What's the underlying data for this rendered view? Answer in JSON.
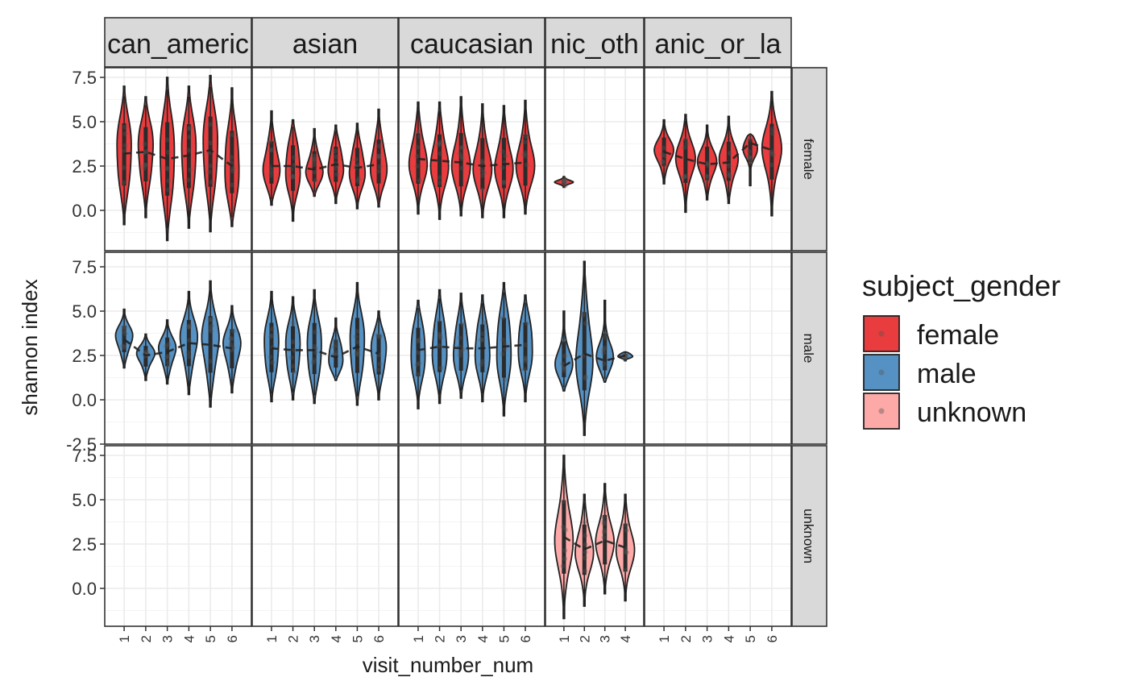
{
  "chart_data": {
    "type": "violin",
    "title": "",
    "xlabel": "visit_number_num",
    "ylabel": "shannon index",
    "ylim": [
      -2.5,
      7.8
    ],
    "y_ticks": [
      "-2.5",
      "0.0",
      "2.5",
      "5.0",
      "7.5"
    ],
    "col_facets": [
      "african_american",
      "asian",
      "caucasian",
      "ethnic_other",
      "hispanic_or_latino"
    ],
    "col_facet_labels": [
      "can_americ",
      "asian",
      "caucasian",
      "nic_oth",
      "anic_or_la"
    ],
    "row_facets": [
      "female",
      "male",
      "unknown"
    ],
    "col_visits": [
      [
        "1",
        "2",
        "3",
        "4",
        "5",
        "6"
      ],
      [
        "1",
        "2",
        "3",
        "4",
        "5",
        "6"
      ],
      [
        "1",
        "2",
        "3",
        "4",
        "5",
        "6"
      ],
      [
        "1",
        "2",
        "3",
        "4"
      ],
      [
        "1",
        "2",
        "3",
        "4",
        "5",
        "6"
      ]
    ],
    "legend": {
      "title": "subject_gender",
      "position": "right",
      "entries": [
        "female",
        "male",
        "unknown"
      ]
    },
    "colors": {
      "female": "#e41a1c",
      "male": "#377eb8",
      "unknown": "#fb9a99",
      "strip_bg": "#d9d9d9",
      "panel_border": "#333333",
      "grid": "#ebebeb"
    },
    "series": [
      {
        "row": "female",
        "col": "african_american",
        "visits": [
          1,
          2,
          3,
          4,
          5,
          6
        ],
        "min": [
          -0.8,
          -0.4,
          -1.7,
          -1.0,
          -1.2,
          -0.9
        ],
        "max": [
          7.0,
          6.4,
          7.5,
          7.0,
          7.6,
          6.9
        ],
        "median": [
          3.2,
          3.3,
          2.9,
          3.1,
          3.4,
          2.5
        ]
      },
      {
        "row": "female",
        "col": "asian",
        "visits": [
          1,
          2,
          3,
          4,
          5,
          6
        ],
        "min": [
          0.3,
          -0.6,
          0.8,
          0.4,
          0.1,
          0.2
        ],
        "max": [
          5.6,
          5.1,
          4.6,
          4.8,
          4.9,
          5.7
        ],
        "median": [
          2.5,
          2.5,
          2.3,
          2.6,
          2.4,
          2.6
        ]
      },
      {
        "row": "female",
        "col": "caucasian",
        "visits": [
          1,
          2,
          3,
          4,
          5,
          6
        ],
        "min": [
          -0.2,
          -0.5,
          -0.3,
          -0.4,
          -0.4,
          -0.2
        ],
        "max": [
          6.1,
          6.1,
          6.4,
          6.0,
          5.9,
          6.2
        ],
        "median": [
          2.9,
          2.8,
          2.7,
          2.5,
          2.6,
          2.7
        ]
      },
      {
        "row": "female",
        "col": "ethnic_other",
        "visits": [
          1
        ],
        "min": [
          1.3
        ],
        "max": [
          1.9
        ],
        "median": [
          1.6
        ]
      },
      {
        "row": "female",
        "col": "hispanic_or_latino",
        "visits": [
          1,
          2,
          3,
          4,
          5,
          6
        ],
        "min": [
          1.5,
          -0.1,
          0.6,
          0.4,
          1.4,
          -0.3
        ],
        "max": [
          5.1,
          5.4,
          4.8,
          5.3,
          4.3,
          6.7
        ],
        "median": [
          3.3,
          2.9,
          2.6,
          2.7,
          3.8,
          3.4
        ]
      },
      {
        "row": "male",
        "col": "african_american",
        "visits": [
          1,
          2,
          3,
          4,
          5,
          6
        ],
        "min": [
          1.8,
          1.1,
          0.9,
          0.3,
          -0.4,
          0.4
        ],
        "max": [
          5.1,
          3.7,
          4.5,
          6.1,
          6.7,
          5.3
        ],
        "median": [
          3.4,
          2.5,
          2.7,
          3.2,
          3.1,
          2.9
        ]
      },
      {
        "row": "male",
        "col": "asian",
        "visits": [
          1,
          2,
          3,
          4,
          5,
          6
        ],
        "min": [
          -0.1,
          0.0,
          -0.2,
          1.1,
          -0.3,
          0.0
        ],
        "max": [
          6.1,
          5.8,
          6.2,
          4.6,
          6.6,
          5.0
        ],
        "median": [
          2.9,
          2.8,
          2.8,
          2.4,
          3.0,
          2.6
        ]
      },
      {
        "row": "male",
        "col": "caucasian",
        "visits": [
          1,
          2,
          3,
          4,
          5,
          6
        ],
        "min": [
          -0.5,
          -0.2,
          0.1,
          -0.1,
          -0.9,
          -0.1
        ],
        "max": [
          5.6,
          6.2,
          6.0,
          5.9,
          6.6,
          5.9
        ],
        "median": [
          2.8,
          3.0,
          2.9,
          2.9,
          3.0,
          3.1
        ]
      },
      {
        "row": "male",
        "col": "ethnic_other",
        "visits": [
          1,
          2,
          3,
          4
        ],
        "min": [
          0.5,
          -2.0,
          1.0,
          2.2
        ],
        "max": [
          5.0,
          7.8,
          5.6,
          2.7
        ],
        "median": [
          1.9,
          2.6,
          2.2,
          2.5
        ]
      },
      {
        "row": "unknown",
        "col": "ethnic_other",
        "visits": [
          1,
          2,
          3,
          4
        ],
        "min": [
          -1.7,
          -1.0,
          -0.3,
          -0.7
        ],
        "max": [
          7.5,
          5.3,
          5.9,
          5.3
        ],
        "median": [
          2.9,
          2.2,
          2.7,
          2.3
        ]
      }
    ]
  }
}
